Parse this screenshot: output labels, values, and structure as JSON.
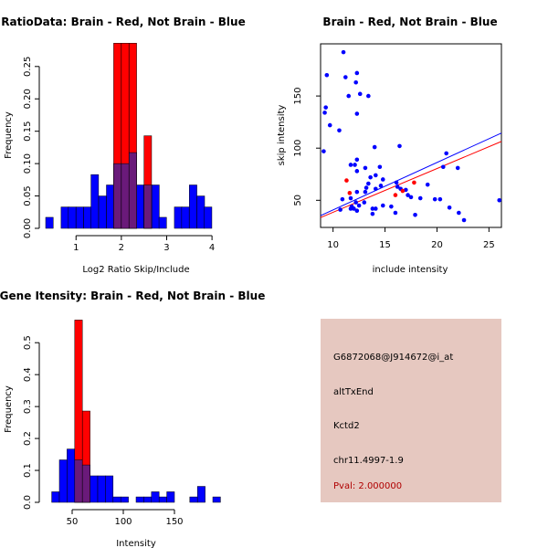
{
  "colors": {
    "brain": "#ff0000",
    "not_brain": "#0000ff",
    "overlap": "#6a1a7a",
    "panel_bg": "#e6c8c0",
    "pval": "#b00000"
  },
  "chart_data": [
    {
      "id": "ratio-hist",
      "type": "bar",
      "title": "RatioData: Brain - Red, Not Brain - Blue",
      "xlabel": "Log2 Ratio Skip/Include",
      "ylabel": "Frequency",
      "xlim": [
        0.35,
        4.3
      ],
      "ylim": [
        0,
        0.285
      ],
      "xticks": [
        1,
        2,
        3,
        4
      ],
      "yticks": [
        0.0,
        0.05,
        0.1,
        0.15,
        0.2,
        0.25
      ],
      "ytick_labels": [
        "0.00",
        "0.05",
        "0.10",
        "0.15",
        "0.20",
        "0.25"
      ],
      "bin_width": 0.1667,
      "series": [
        {
          "name": "Not Brain",
          "color": "blue",
          "bin_starts": [
            0.33,
            0.67,
            0.83,
            1.0,
            1.17,
            1.33,
            1.5,
            1.67,
            1.83,
            2.0,
            2.17,
            2.33,
            2.5,
            2.67,
            2.83,
            3.0,
            3.17,
            3.33,
            3.5,
            3.67,
            3.83,
            4.0
          ],
          "values": [
            0.017,
            0.033,
            0.033,
            0.033,
            0.033,
            0.083,
            0.05,
            0.067,
            0.1,
            0.1,
            0.117,
            0.067,
            0.067,
            0.067,
            0.017,
            0.0,
            0.033,
            0.033,
            0.067,
            0.05,
            0.033,
            0.0
          ]
        },
        {
          "name": "Brain",
          "color": "red",
          "bin_starts": [
            1.83,
            2.0,
            2.17,
            2.5
          ],
          "values": [
            0.286,
            0.286,
            0.286,
            0.143
          ]
        }
      ]
    },
    {
      "id": "scatter",
      "type": "scatter",
      "title": "Brain - Red, Not Brain - Blue",
      "xlabel": "include intensity",
      "ylabel": "skip intensity",
      "xlim": [
        8.8,
        26.2
      ],
      "ylim": [
        24,
        200
      ],
      "xticks": [
        10,
        15,
        20,
        25
      ],
      "yticks": [
        50,
        100,
        150
      ],
      "series": [
        {
          "name": "Not Brain",
          "color": "blue",
          "points": [
            [
              11.0,
              192
            ],
            [
              9.4,
              170
            ],
            [
              11.2,
              168
            ],
            [
              12.3,
              172
            ],
            [
              12.2,
              163
            ],
            [
              11.5,
              150
            ],
            [
              12.6,
              152
            ],
            [
              13.4,
              150
            ],
            [
              9.3,
              139
            ],
            [
              9.2,
              134
            ],
            [
              9.7,
              122
            ],
            [
              10.6,
              117
            ],
            [
              12.3,
              133
            ],
            [
              9.1,
              97
            ],
            [
              14.0,
              101
            ],
            [
              16.4,
              102
            ],
            [
              20.9,
              95
            ],
            [
              12.3,
              89
            ],
            [
              11.7,
              84
            ],
            [
              12.1,
              84
            ],
            [
              12.3,
              78
            ],
            [
              13.1,
              81
            ],
            [
              14.5,
              82
            ],
            [
              22.0,
              81
            ],
            [
              20.6,
              82
            ],
            [
              14.1,
              74
            ],
            [
              13.6,
              72
            ],
            [
              14.8,
              70
            ],
            [
              13.4,
              66
            ],
            [
              14.6,
              64
            ],
            [
              13.2,
              62
            ],
            [
              14.1,
              61
            ],
            [
              16.1,
              67
            ],
            [
              16.2,
              63
            ],
            [
              16.5,
              61
            ],
            [
              17.0,
              60
            ],
            [
              19.1,
              65
            ],
            [
              12.3,
              58
            ],
            [
              13.1,
              58
            ],
            [
              17.2,
              55
            ],
            [
              17.5,
              53
            ],
            [
              18.4,
              52
            ],
            [
              19.8,
              51
            ],
            [
              20.3,
              51
            ],
            [
              11.7,
              52
            ],
            [
              10.9,
              51
            ],
            [
              12.2,
              48
            ],
            [
              13.0,
              48
            ],
            [
              12.5,
              45
            ],
            [
              14.8,
              45
            ],
            [
              15.6,
              44
            ],
            [
              14.1,
              42
            ],
            [
              13.8,
              42
            ],
            [
              11.8,
              44
            ],
            [
              12.0,
              42
            ],
            [
              11.7,
              42
            ],
            [
              10.7,
              41
            ],
            [
              12.3,
              40
            ],
            [
              13.8,
              37
            ],
            [
              16.0,
              38
            ],
            [
              17.9,
              36
            ],
            [
              21.2,
              43
            ],
            [
              22.1,
              38
            ],
            [
              22.6,
              31
            ],
            [
              26.0,
              50
            ]
          ]
        },
        {
          "name": "Brain",
          "color": "red",
          "points": [
            [
              11.3,
              69
            ],
            [
              11.6,
              57
            ],
            [
              16.0,
              55
            ],
            [
              16.7,
              59
            ],
            [
              17.8,
              67
            ]
          ]
        }
      ],
      "fit_lines": [
        {
          "name": "Not Brain fit",
          "color": "blue",
          "x": [
            8.8,
            26.2
          ],
          "y": [
            35.3,
            114.5
          ]
        },
        {
          "name": "Brain fit",
          "color": "red",
          "x": [
            8.8,
            26.2
          ],
          "y": [
            33.5,
            106.4
          ]
        }
      ]
    },
    {
      "id": "intensity-hist",
      "type": "bar",
      "title": "Gene Itensity: Brain - Red, Not Brain - Blue",
      "xlabel": "Intensity",
      "ylabel": "Frequency",
      "xlim": [
        25,
        200
      ],
      "ylim": [
        0,
        0.575
      ],
      "xticks": [
        50,
        100,
        150
      ],
      "yticks": [
        0.0,
        0.1,
        0.2,
        0.3,
        0.4,
        0.5
      ],
      "ytick_labels": [
        "0.0",
        "0.1",
        "0.2",
        "0.3",
        "0.4",
        "0.5"
      ],
      "bin_width": 7.5,
      "series": [
        {
          "name": "Not Brain",
          "color": "blue",
          "bin_starts": [
            30,
            37.5,
            45,
            52.5,
            60,
            67.5,
            75,
            82.5,
            90,
            97.5,
            105,
            112.5,
            120,
            127.5,
            135,
            142.5,
            150,
            157.5,
            165,
            172.5,
            180,
            187.5
          ],
          "values": [
            0.033,
            0.133,
            0.167,
            0.133,
            0.117,
            0.083,
            0.083,
            0.083,
            0.017,
            0.017,
            0.0,
            0.017,
            0.017,
            0.033,
            0.017,
            0.033,
            0.0,
            0.0,
            0.017,
            0.05,
            0.0,
            0.017
          ]
        },
        {
          "name": "Brain",
          "color": "red",
          "bin_starts": [
            52.5,
            60
          ],
          "values": [
            0.571,
            0.286
          ]
        }
      ]
    }
  ],
  "info_panel": {
    "probe_id": "G6872068@J914672@i_at",
    "event_type": "altTxEnd",
    "gene": "Kctd2",
    "location": "chr11.4997-1.9",
    "pval": "Pval: 2.000000"
  }
}
